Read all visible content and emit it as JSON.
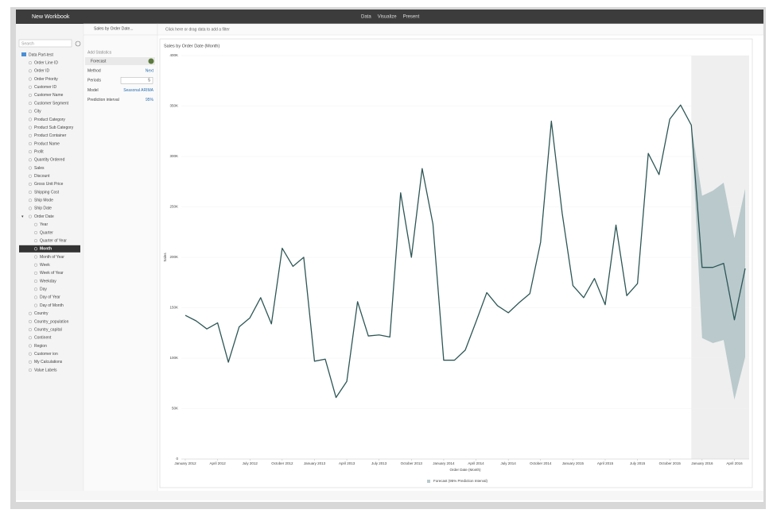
{
  "window": {
    "title": "New Workbook",
    "tabs": [
      "Data",
      "Visualize",
      "Present"
    ]
  },
  "sidebar": {
    "search": "Search",
    "root": "Data Part-test",
    "fields": [
      {
        "label": "Order Line ID"
      },
      {
        "label": "Order ID"
      },
      {
        "label": "Order Priority"
      },
      {
        "label": "Customer ID"
      },
      {
        "label": "Customer Name"
      },
      {
        "label": "Customer Segment"
      },
      {
        "label": "City"
      },
      {
        "label": "Product Category"
      },
      {
        "label": "Product Sub Category"
      },
      {
        "label": "Product Container"
      },
      {
        "label": "Product Name"
      },
      {
        "label": "Profit"
      },
      {
        "label": "Quantity Ordered"
      },
      {
        "label": "Sales"
      },
      {
        "label": "Discount"
      },
      {
        "label": "Gross Unit Price"
      },
      {
        "label": "Shipping Cost"
      },
      {
        "label": "Ship Mode"
      },
      {
        "label": "Ship Date"
      },
      {
        "label": "Order Date",
        "children": [
          {
            "label": "Year"
          },
          {
            "label": "Quarter"
          },
          {
            "label": "Quarter of Year"
          },
          {
            "label": "Month",
            "selected": true
          },
          {
            "label": "Month of Year"
          },
          {
            "label": "Week"
          },
          {
            "label": "Week of Year"
          },
          {
            "label": "Weekday"
          },
          {
            "label": "Day"
          },
          {
            "label": "Day of Year"
          },
          {
            "label": "Day of Month"
          }
        ]
      },
      {
        "label": "Country"
      },
      {
        "label": "Country_population"
      },
      {
        "label": "Country_capital"
      },
      {
        "label": "Continent"
      },
      {
        "label": "Region"
      },
      {
        "label": "Customer ion"
      },
      {
        "label": "My Calculations"
      },
      {
        "label": "Value Labels"
      }
    ]
  },
  "panel": {
    "tab": "Sales by Order Date...",
    "add_statistics": "Add Statistics",
    "section": "Forecast",
    "settings": [
      {
        "label": "Method",
        "value": "Next"
      },
      {
        "label": "Periods",
        "value": 5
      },
      {
        "label": "Model",
        "value": "Seasonal ARIMA"
      },
      {
        "label": "Prediction interval",
        "value": "95%"
      }
    ]
  },
  "filter_bar": "Click here or drag data to add a filter",
  "chart_data": {
    "type": "line",
    "title": "Sales by Order Date (Month)",
    "x_label": "Order Date (Month)",
    "y_label": "Sales",
    "color": "#2e5656",
    "grid": true,
    "categories": [
      "January 2012",
      null,
      null,
      "April 2012",
      null,
      null,
      "July 2012",
      null,
      null,
      "October 2012",
      null,
      null,
      "January 2013",
      null,
      null,
      "April 2013",
      null,
      null,
      "July 2013",
      null,
      null,
      "October 2013",
      null,
      null,
      "January 2014",
      null,
      null,
      "April 2014",
      null,
      null,
      "July 2014",
      null,
      null,
      "October 2014",
      null,
      null,
      "January 2015",
      null,
      null,
      "April 2015",
      null,
      null,
      "July 2015",
      null,
      null,
      "October 2015",
      null,
      null,
      "January 2016",
      null,
      null,
      "April 2016",
      null
    ],
    "values": [
      142500,
      137000,
      129000,
      135000,
      96000,
      131000,
      140000,
      160000,
      134000,
      209000,
      191000,
      200000,
      97000,
      99000,
      61000,
      77000,
      156000,
      122000,
      123000,
      121000,
      264000,
      200000,
      288000,
      233000,
      98000,
      98000,
      108000,
      136000,
      165000,
      152000,
      145000,
      155000,
      164000,
      215000,
      335000,
      244000,
      172000,
      160000,
      179000,
      153000,
      232000,
      162000,
      174000,
      303000,
      282000,
      337000,
      351000,
      331000,
      190000,
      190000,
      194000,
      138000,
      189000
    ],
    "forecast": {
      "name": "Forecast (95% Prediction Interval)",
      "color": "#b9c9cc",
      "upper": [
        null,
        null,
        null,
        null,
        null,
        null,
        null,
        null,
        null,
        null,
        null,
        null,
        null,
        null,
        null,
        null,
        null,
        null,
        null,
        null,
        null,
        null,
        null,
        null,
        null,
        null,
        null,
        null,
        null,
        null,
        null,
        null,
        null,
        null,
        null,
        null,
        null,
        null,
        null,
        null,
        null,
        null,
        null,
        null,
        null,
        null,
        null,
        331000,
        261000,
        266000,
        274000,
        219000,
        268000
      ],
      "lower": [
        null,
        null,
        null,
        null,
        null,
        null,
        null,
        null,
        null,
        null,
        null,
        null,
        null,
        null,
        null,
        null,
        null,
        null,
        null,
        null,
        null,
        null,
        null,
        null,
        null,
        null,
        null,
        null,
        null,
        null,
        null,
        null,
        null,
        null,
        null,
        null,
        null,
        null,
        null,
        null,
        null,
        null,
        null,
        null,
        null,
        null,
        null,
        331000,
        120000,
        115000,
        118000,
        59000,
        101000
      ]
    },
    "ylim": [
      0,
      400000
    ],
    "yticks": [
      {
        "value": 0,
        "label": "0"
      },
      {
        "value": 50000,
        "label": "50K"
      },
      {
        "value": 100000,
        "label": "100K"
      },
      {
        "value": 150000,
        "label": "150K"
      },
      {
        "value": 200000,
        "label": "200K"
      },
      {
        "value": 250000,
        "label": "250K"
      },
      {
        "value": 300000,
        "label": "300K"
      },
      {
        "value": 350000,
        "label": "350K"
      },
      {
        "value": 400000,
        "label": "400K"
      }
    ]
  }
}
